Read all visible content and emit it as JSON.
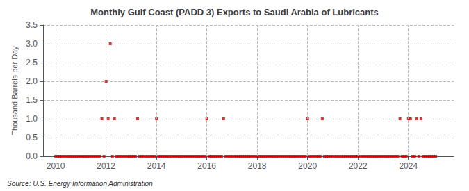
{
  "chart_data": {
    "type": "scatter",
    "title": "Monthly Gulf Coast (PADD 3) Exports to Saudi Arabia of Lubricants",
    "ylabel": "Thousand Barrels per Day",
    "annotation": "Source: U.S. Energy Information Administration",
    "color": "#cc0000",
    "marker": "square",
    "grid": true,
    "xlim": [
      2009.5,
      2025.8
    ],
    "xticks": [
      2010,
      2012,
      2014,
      2016,
      2018,
      2020,
      2022,
      2024
    ],
    "ylim": [
      0.0,
      3.5
    ],
    "yticks": [
      {
        "value": 0.0,
        "label": "0.0"
      },
      0.5,
      {
        "value": 1.0,
        "label": "1.0"
      },
      1.5,
      {
        "value": 2.0,
        "label": "2.0"
      },
      2.5,
      {
        "value": 3.0,
        "label": "3.0"
      },
      3.5
    ],
    "x": [
      2010.0,
      2010.083,
      2010.167,
      2010.25,
      2010.333,
      2010.417,
      2010.5,
      2010.583,
      2010.667,
      2010.75,
      2010.833,
      2010.917,
      2011.0,
      2011.083,
      2011.167,
      2011.25,
      2011.333,
      2011.417,
      2011.5,
      2011.583,
      2011.667,
      2011.75,
      2011.833,
      2011.917,
      2012.0,
      2012.083,
      2012.167,
      2012.25,
      2012.333,
      2012.417,
      2012.5,
      2012.583,
      2012.667,
      2012.75,
      2012.833,
      2012.917,
      2013.0,
      2013.083,
      2013.167,
      2013.25,
      2013.333,
      2013.417,
      2013.5,
      2013.583,
      2013.667,
      2013.75,
      2013.833,
      2013.917,
      2014.0,
      2014.083,
      2014.167,
      2014.25,
      2014.333,
      2014.417,
      2014.5,
      2014.583,
      2014.667,
      2014.75,
      2014.833,
      2014.917,
      2015.0,
      2015.083,
      2015.167,
      2015.25,
      2015.333,
      2015.417,
      2015.5,
      2015.583,
      2015.667,
      2015.75,
      2015.833,
      2015.917,
      2016.0,
      2016.083,
      2016.167,
      2016.25,
      2016.333,
      2016.417,
      2016.5,
      2016.583,
      2016.667,
      2016.75,
      2016.833,
      2016.917,
      2017.0,
      2017.083,
      2017.167,
      2017.25,
      2017.333,
      2017.417,
      2017.5,
      2017.583,
      2017.667,
      2017.75,
      2017.833,
      2017.917,
      2018.0,
      2018.083,
      2018.167,
      2018.25,
      2018.333,
      2018.417,
      2018.5,
      2018.583,
      2018.667,
      2018.75,
      2018.833,
      2018.917,
      2019.0,
      2019.083,
      2019.167,
      2019.25,
      2019.333,
      2019.417,
      2019.5,
      2019.583,
      2019.667,
      2019.75,
      2019.833,
      2019.917,
      2020.0,
      2020.083,
      2020.167,
      2020.25,
      2020.333,
      2020.417,
      2020.5,
      2020.583,
      2020.667,
      2020.75,
      2020.833,
      2020.917,
      2021.0,
      2021.083,
      2021.167,
      2021.25,
      2021.333,
      2021.417,
      2021.5,
      2021.583,
      2021.667,
      2021.75,
      2021.833,
      2021.917,
      2022.0,
      2022.083,
      2022.167,
      2022.25,
      2022.333,
      2022.417,
      2022.5,
      2022.583,
      2022.667,
      2022.75,
      2022.833,
      2022.917,
      2023.0,
      2023.083,
      2023.167,
      2023.25,
      2023.333,
      2023.417,
      2023.5,
      2023.583,
      2023.667,
      2023.75,
      2023.833,
      2023.917,
      2024.0,
      2024.083,
      2024.167,
      2024.25,
      2024.333,
      2024.417,
      2024.5,
      2024.583,
      2024.667,
      2024.75,
      2024.833,
      2024.917,
      2025.0,
      2025.083
    ],
    "values": [
      0,
      0,
      0,
      0,
      0,
      0,
      0,
      0,
      0,
      0,
      0,
      0,
      0,
      0,
      0,
      0,
      0,
      0,
      0,
      0,
      0,
      0,
      1,
      0,
      2,
      1,
      3,
      0,
      1,
      0,
      0,
      0,
      0,
      0,
      0,
      0,
      0,
      0,
      0,
      1,
      0,
      0,
      0,
      0,
      0,
      0,
      0,
      0,
      1,
      0,
      0,
      0,
      0,
      0,
      0,
      0,
      0,
      0,
      0,
      0,
      0,
      0,
      0,
      0,
      0,
      0,
      0,
      0,
      0,
      0,
      0,
      0,
      1,
      0,
      0,
      0,
      0,
      0,
      0,
      0,
      1,
      0,
      0,
      0,
      0,
      0,
      0,
      0,
      0,
      0,
      0,
      0,
      0,
      0,
      0,
      0,
      0,
      0,
      0,
      0,
      0,
      0,
      0,
      0,
      0,
      0,
      0,
      0,
      0,
      0,
      0,
      0,
      0,
      0,
      0,
      0,
      0,
      0,
      0,
      0,
      1,
      0,
      0,
      0,
      0,
      0,
      0,
      1,
      0,
      0,
      0,
      0,
      0,
      0,
      0,
      0,
      0,
      0,
      0,
      0,
      0,
      0,
      0,
      0,
      0,
      0,
      0,
      0,
      0,
      0,
      0,
      0,
      0,
      0,
      0,
      0,
      0,
      0,
      0,
      0,
      0,
      0,
      0,
      0,
      1,
      0,
      0,
      0,
      1,
      1,
      0,
      0,
      1,
      0,
      1,
      0,
      0,
      0,
      0,
      0,
      0,
      0
    ]
  }
}
